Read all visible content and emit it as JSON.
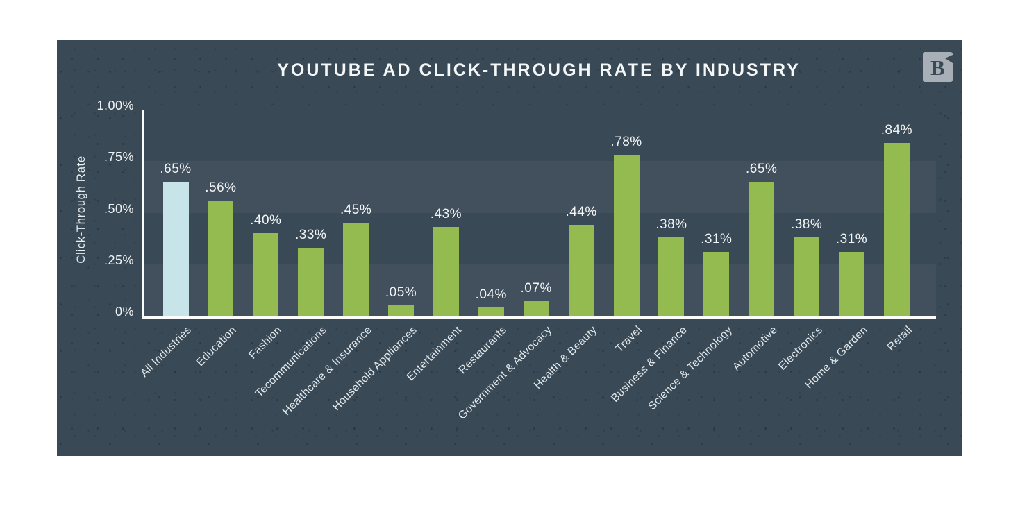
{
  "header": {
    "logo_letter": "B"
  },
  "colors": {
    "page_background": "#ffffff",
    "card_background": "#3a4956",
    "band": "#41505c",
    "axis": "#fbfcfc",
    "text": "#f3f6f7",
    "bar_default": "#93bb4f",
    "bar_highlight": "#c7e4e8",
    "logo_background": "#a8afb6"
  },
  "chart_data": {
    "type": "bar",
    "title": "YOUTUBE AD CLICK-THROUGH RATE BY INDUSTRY",
    "xlabel": "",
    "ylabel": "Click-Through Rate",
    "ylim": [
      0,
      1.0
    ],
    "grid": "alternating horizontal bands",
    "legend_position": "none",
    "yticks": [
      {
        "value": 1.0,
        "label": "1.00%"
      },
      {
        "value": 0.75,
        "label": ".75%"
      },
      {
        "value": 0.5,
        "label": ".50%"
      },
      {
        "value": 0.25,
        "label": ".25%"
      },
      {
        "value": 0,
        "label": "0%"
      }
    ],
    "band_rows": [
      [
        0.5,
        0.75
      ],
      [
        0,
        0.25
      ]
    ],
    "bars": [
      {
        "category": "All Industries",
        "value": 0.65,
        "label": ".65%",
        "color": "#c7e4e8",
        "highlight": true
      },
      {
        "category": "Education",
        "value": 0.56,
        "label": ".56%",
        "color": "#93bb4f",
        "highlight": false
      },
      {
        "category": "Fashion",
        "value": 0.4,
        "label": ".40%",
        "color": "#93bb4f",
        "highlight": false
      },
      {
        "category": "Tecommunications",
        "value": 0.33,
        "label": ".33%",
        "color": "#93bb4f",
        "highlight": false
      },
      {
        "category": "Healthcare & Insurance",
        "value": 0.45,
        "label": ".45%",
        "color": "#93bb4f",
        "highlight": false
      },
      {
        "category": "Household Appliances",
        "value": 0.05,
        "label": ".05%",
        "color": "#93bb4f",
        "highlight": false
      },
      {
        "category": "Entertainment",
        "value": 0.43,
        "label": ".43%",
        "color": "#93bb4f",
        "highlight": false
      },
      {
        "category": "Restaurants",
        "value": 0.04,
        "label": ".04%",
        "color": "#93bb4f",
        "highlight": false
      },
      {
        "category": "Government & Advocacy",
        "value": 0.07,
        "label": ".07%",
        "color": "#93bb4f",
        "highlight": false
      },
      {
        "category": "Health & Beauty",
        "value": 0.44,
        "label": ".44%",
        "color": "#93bb4f",
        "highlight": false
      },
      {
        "category": "Travel",
        "value": 0.78,
        "label": ".78%",
        "color": "#93bb4f",
        "highlight": false
      },
      {
        "category": "Business & Finance",
        "value": 0.38,
        "label": ".38%",
        "color": "#93bb4f",
        "highlight": false
      },
      {
        "category": "Science & Technology",
        "value": 0.31,
        "label": ".31%",
        "color": "#93bb4f",
        "highlight": false
      },
      {
        "category": "Automotive",
        "value": 0.65,
        "label": ".65%",
        "color": "#93bb4f",
        "highlight": false
      },
      {
        "category": "Electronics",
        "value": 0.38,
        "label": ".38%",
        "color": "#93bb4f",
        "highlight": false
      },
      {
        "category": "Home & Garden",
        "value": 0.31,
        "label": ".31%",
        "color": "#93bb4f",
        "highlight": false
      },
      {
        "category": "Retail",
        "value": 0.84,
        "label": ".84%",
        "color": "#93bb4f",
        "highlight": false
      }
    ]
  }
}
